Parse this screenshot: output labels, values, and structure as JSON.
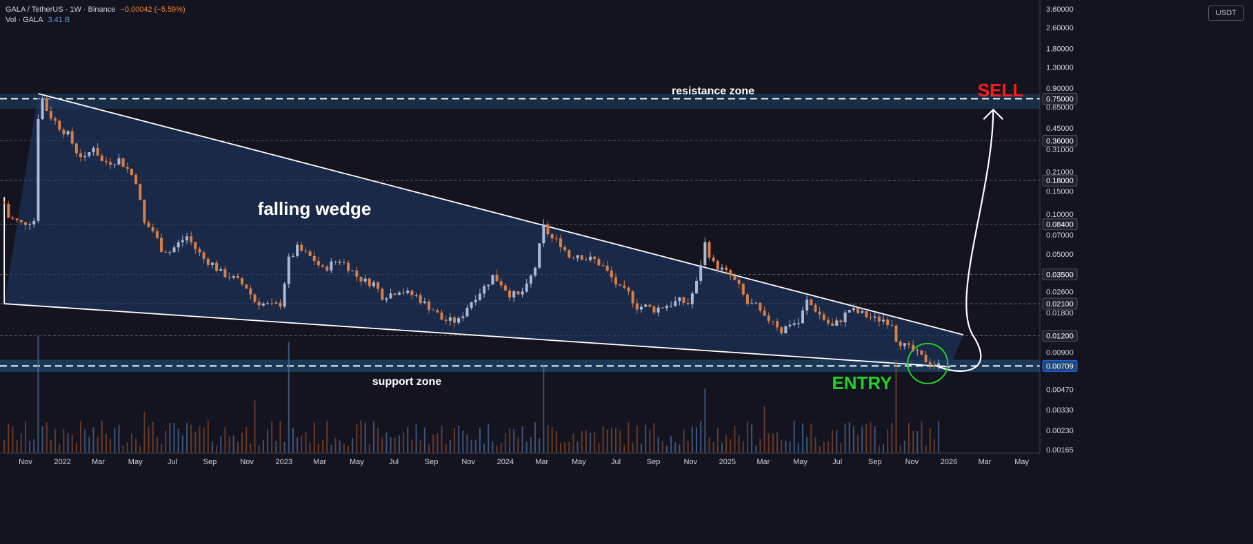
{
  "header": {
    "symbol": "GALA / TetherUS · 1W · Binance",
    "change": "−0.00042 (−5.59%)",
    "vol_label": "Vol · GALA",
    "vol_value": "3.41 B"
  },
  "currency_button": "USDT",
  "colors": {
    "background": "#141420",
    "up": "#a9b9d6",
    "down": "#d87f48",
    "wedge_fill": "#1f3760",
    "zone_fill": "#1c3f61",
    "entry": "#22d122",
    "sell": "#ff1a1a",
    "text": "#d1d4dc"
  },
  "annotations": {
    "resistance": "resistance zone",
    "support": "support zone",
    "wedge": "falling wedge",
    "entry": "ENTRY",
    "sell": "SELL"
  },
  "chart_data": {
    "type": "candlestick",
    "scale": "log",
    "ylim": [
      0.00155,
      4.2
    ],
    "xlim": [
      "2021-09-20",
      "2026-05-31"
    ],
    "yticks": [
      "3.60000",
      "2.60000",
      "1.80000",
      "1.30000",
      "0.90000",
      "0.65000",
      "0.45000",
      "0.31000",
      "0.21000",
      "0.15000",
      "0.10000",
      "0.07000",
      "0.05000",
      "0.03500",
      "0.02600",
      "0.01800",
      "0.01200",
      "0.00900",
      "0.00700",
      "0.00470",
      "0.00330",
      "0.00230",
      "0.00165"
    ],
    "highlighted_levels": [
      "0.75000",
      "0.36000",
      "0.18000",
      "0.08400",
      "0.03500",
      "0.02100",
      "0.01200",
      "0.00709"
    ],
    "current_price": "0.00709",
    "xticks": [
      {
        "date": "2021-11-01",
        "label": "Nov"
      },
      {
        "date": "2022-01-01",
        "label": "2022"
      },
      {
        "date": "2022-03-01",
        "label": "Mar"
      },
      {
        "date": "2022-05-01",
        "label": "May"
      },
      {
        "date": "2022-07-01",
        "label": "Jul"
      },
      {
        "date": "2022-09-01",
        "label": "Sep"
      },
      {
        "date": "2022-11-01",
        "label": "Nov"
      },
      {
        "date": "2023-01-01",
        "label": "2023"
      },
      {
        "date": "2023-03-01",
        "label": "Mar"
      },
      {
        "date": "2023-05-01",
        "label": "May"
      },
      {
        "date": "2023-07-01",
        "label": "Jul"
      },
      {
        "date": "2023-09-01",
        "label": "Sep"
      },
      {
        "date": "2023-11-01",
        "label": "Nov"
      },
      {
        "date": "2024-01-01",
        "label": "2024"
      },
      {
        "date": "2024-03-01",
        "label": "Mar"
      },
      {
        "date": "2024-05-01",
        "label": "May"
      },
      {
        "date": "2024-07-01",
        "label": "Jul"
      },
      {
        "date": "2024-09-01",
        "label": "Sep"
      },
      {
        "date": "2024-11-01",
        "label": "Nov"
      },
      {
        "date": "2025-01-01",
        "label": "2025"
      },
      {
        "date": "2025-03-01",
        "label": "Mar"
      },
      {
        "date": "2025-05-01",
        "label": "May"
      },
      {
        "date": "2025-07-01",
        "label": "Jul"
      },
      {
        "date": "2025-09-01",
        "label": "Sep"
      },
      {
        "date": "2025-11-01",
        "label": "Nov"
      },
      {
        "date": "2026-01-01",
        "label": "2026"
      },
      {
        "date": "2026-03-01",
        "label": "Mar"
      },
      {
        "date": "2026-05-01",
        "label": "May"
      }
    ],
    "close_path": [
      [
        "2021-09-27",
        0.12
      ],
      [
        "2021-10-04",
        0.095
      ],
      [
        "2021-10-25",
        0.085
      ],
      [
        "2021-11-15",
        0.09
      ],
      [
        "2021-11-22",
        0.55
      ],
      [
        "2021-11-29",
        0.75
      ],
      [
        "2021-12-06",
        0.62
      ],
      [
        "2021-12-13",
        0.55
      ],
      [
        "2021-12-27",
        0.46
      ],
      [
        "2022-01-10",
        0.4
      ],
      [
        "2022-01-24",
        0.3
      ],
      [
        "2022-02-07",
        0.26
      ],
      [
        "2022-02-21",
        0.33
      ],
      [
        "2022-03-07",
        0.25
      ],
      [
        "2022-03-21",
        0.25
      ],
      [
        "2022-04-04",
        0.26
      ],
      [
        "2022-04-18",
        0.22
      ],
      [
        "2022-05-02",
        0.18
      ],
      [
        "2022-05-16",
        0.085
      ],
      [
        "2022-05-30",
        0.075
      ],
      [
        "2022-06-13",
        0.055
      ],
      [
        "2022-06-27",
        0.052
      ],
      [
        "2022-07-11",
        0.06
      ],
      [
        "2022-07-25",
        0.068
      ],
      [
        "2022-08-08",
        0.055
      ],
      [
        "2022-08-22",
        0.046
      ],
      [
        "2022-09-05",
        0.042
      ],
      [
        "2022-09-19",
        0.036
      ],
      [
        "2022-10-03",
        0.034
      ],
      [
        "2022-10-17",
        0.031
      ],
      [
        "2022-10-31",
        0.028
      ],
      [
        "2022-11-14",
        0.022
      ],
      [
        "2022-11-28",
        0.021
      ],
      [
        "2022-12-12",
        0.02
      ],
      [
        "2022-12-26",
        0.021
      ],
      [
        "2023-01-09",
        0.045
      ],
      [
        "2023-01-23",
        0.055
      ],
      [
        "2023-02-06",
        0.05
      ],
      [
        "2023-02-20",
        0.045
      ],
      [
        "2023-03-06",
        0.038
      ],
      [
        "2023-03-20",
        0.042
      ],
      [
        "2023-04-03",
        0.045
      ],
      [
        "2023-04-17",
        0.04
      ],
      [
        "2023-05-01",
        0.034
      ],
      [
        "2023-05-15",
        0.031
      ],
      [
        "2023-05-29",
        0.03
      ],
      [
        "2023-06-12",
        0.024
      ],
      [
        "2023-06-26",
        0.025
      ],
      [
        "2023-07-10",
        0.027
      ],
      [
        "2023-07-24",
        0.025
      ],
      [
        "2023-08-07",
        0.024
      ],
      [
        "2023-08-21",
        0.021
      ],
      [
        "2023-09-04",
        0.019
      ],
      [
        "2023-09-18",
        0.016
      ],
      [
        "2023-10-02",
        0.0155
      ],
      [
        "2023-10-16",
        0.0155
      ],
      [
        "2023-10-30",
        0.02
      ],
      [
        "2023-11-13",
        0.024
      ],
      [
        "2023-11-27",
        0.028
      ],
      [
        "2023-12-11",
        0.034
      ],
      [
        "2023-12-25",
        0.03
      ],
      [
        "2024-01-08",
        0.025
      ],
      [
        "2024-01-22",
        0.024
      ],
      [
        "2024-02-05",
        0.028
      ],
      [
        "2024-02-19",
        0.04
      ],
      [
        "2024-03-04",
        0.08
      ],
      [
        "2024-03-18",
        0.065
      ],
      [
        "2024-04-01",
        0.06
      ],
      [
        "2024-04-15",
        0.048
      ],
      [
        "2024-04-29",
        0.05
      ],
      [
        "2024-05-13",
        0.046
      ],
      [
        "2024-05-27",
        0.045
      ],
      [
        "2024-06-10",
        0.04
      ],
      [
        "2024-06-24",
        0.033
      ],
      [
        "2024-07-08",
        0.027
      ],
      [
        "2024-07-22",
        0.025
      ],
      [
        "2024-08-05",
        0.02
      ],
      [
        "2024-08-19",
        0.02
      ],
      [
        "2024-09-02",
        0.019
      ],
      [
        "2024-09-16",
        0.02
      ],
      [
        "2024-09-30",
        0.021
      ],
      [
        "2024-10-14",
        0.022
      ],
      [
        "2024-10-28",
        0.021
      ],
      [
        "2024-11-11",
        0.03
      ],
      [
        "2024-11-25",
        0.06
      ],
      [
        "2024-12-09",
        0.042
      ],
      [
        "2024-12-23",
        0.038
      ],
      [
        "2025-01-06",
        0.034
      ],
      [
        "2025-01-20",
        0.028
      ],
      [
        "2025-02-03",
        0.021
      ],
      [
        "2025-02-17",
        0.02
      ],
      [
        "2025-03-03",
        0.016
      ],
      [
        "2025-03-17",
        0.016
      ],
      [
        "2025-03-31",
        0.013
      ],
      [
        "2025-04-14",
        0.015
      ],
      [
        "2025-04-28",
        0.015
      ],
      [
        "2025-05-12",
        0.022
      ],
      [
        "2025-05-26",
        0.019
      ],
      [
        "2025-06-09",
        0.016
      ],
      [
        "2025-06-23",
        0.014
      ],
      [
        "2025-07-07",
        0.016
      ],
      [
        "2025-07-21",
        0.019
      ],
      [
        "2025-08-04",
        0.018
      ],
      [
        "2025-08-18",
        0.017
      ],
      [
        "2025-09-01",
        0.016
      ],
      [
        "2025-09-15",
        0.016
      ],
      [
        "2025-09-29",
        0.015
      ],
      [
        "2025-10-06",
        0.0115
      ],
      [
        "2025-10-20",
        0.01
      ],
      [
        "2025-11-03",
        0.0092
      ],
      [
        "2025-11-17",
        0.0082
      ],
      [
        "2025-12-01",
        0.0075
      ],
      [
        "2025-12-15",
        0.00709
      ]
    ],
    "volume_spikes": [
      [
        "2021-11-22",
        1.0
      ],
      [
        "2022-05-16",
        0.35
      ],
      [
        "2022-11-14",
        0.45
      ],
      [
        "2023-01-09",
        0.95
      ],
      [
        "2024-03-04",
        0.75
      ],
      [
        "2024-11-25",
        0.55
      ],
      [
        "2025-03-03",
        0.4
      ],
      [
        "2025-10-06",
        0.8
      ]
    ]
  }
}
